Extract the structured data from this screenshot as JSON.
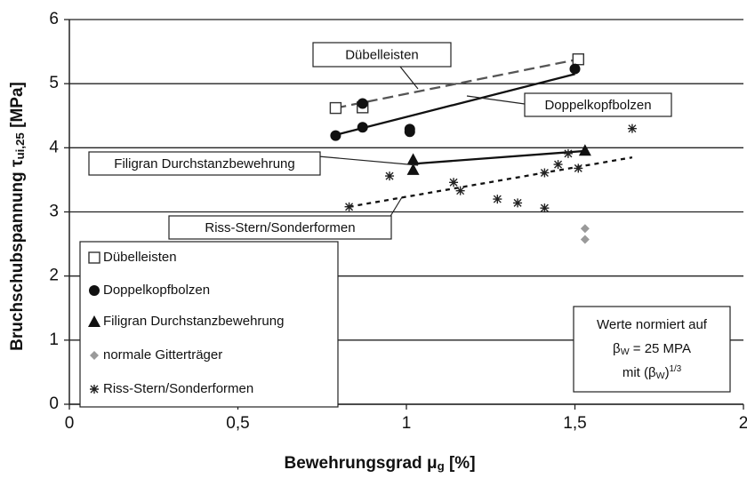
{
  "chart_data": {
    "type": "scatter",
    "x_label": [
      {
        "t": "Bewehrungsgrad μ"
      },
      {
        "sub": "g"
      },
      {
        "t": " [%]"
      }
    ],
    "y_label": [
      {
        "t": "Bruchschubspannung τ"
      },
      {
        "sub": "ui,25"
      },
      {
        "t": " [MPa]"
      }
    ],
    "xlim": [
      0,
      2
    ],
    "ylim": [
      0,
      6
    ],
    "xticks": [
      0,
      {
        "value": 0.5,
        "label": "0,5"
      },
      1,
      {
        "value": 1.5,
        "label": "1,5"
      },
      2
    ],
    "yticks": [
      0,
      1,
      2,
      3,
      4,
      5,
      6
    ],
    "grid": true,
    "series": [
      {
        "name": "Dübelleisten",
        "marker": "square",
        "color": "#333333",
        "x": [
          0.79,
          0.87,
          1.51
        ],
        "values": [
          4.62,
          4.63,
          5.38
        ],
        "trend_x": [
          0.79,
          1.51
        ],
        "trend_y": [
          4.62,
          5.38
        ],
        "trend_style": "dashed"
      },
      {
        "name": "Doppelkopfbolzen",
        "marker": "circle",
        "color": "#111111",
        "x": [
          0.79,
          0.87,
          0.87,
          1.01,
          1.01,
          1.5
        ],
        "values": [
          4.19,
          4.32,
          4.69,
          4.25,
          4.29,
          5.23
        ],
        "trend_x": [
          0.79,
          1.5
        ],
        "trend_y": [
          4.2,
          5.15
        ],
        "trend_style": "solid"
      },
      {
        "name": "Filigran Durchstanzbewehrung",
        "marker": "triangle",
        "color": "#111111",
        "x": [
          1.02,
          1.02,
          1.53
        ],
        "values": [
          3.82,
          3.66,
          3.96
        ],
        "trend_x": [
          1.02,
          1.53
        ],
        "trend_y": [
          3.75,
          3.95
        ],
        "trend_style": "solid"
      },
      {
        "name": "normale Gitterträger",
        "marker": "diamond",
        "color": "#9a9a9a",
        "x": [
          1.53,
          1.53
        ],
        "values": [
          2.74,
          2.57
        ]
      },
      {
        "name": "Riss-Stern/Sonderformen",
        "marker": "asterisk",
        "color": "#222222",
        "x": [
          0.83,
          0.95,
          1.14,
          1.16,
          1.27,
          1.33,
          1.41,
          1.41,
          1.45,
          1.48,
          1.51,
          1.67
        ],
        "values": [
          3.08,
          3.56,
          3.46,
          3.33,
          3.2,
          3.14,
          3.06,
          3.61,
          3.74,
          3.91,
          3.68,
          4.3
        ],
        "trend_x": [
          0.83,
          1.67
        ],
        "trend_y": [
          3.08,
          3.85
        ],
        "trend_style": "dotted"
      }
    ],
    "annotations": [
      "Dübelleisten",
      "Doppelkopfbolzen",
      "Filigran Durchstanzbewehrung",
      "Riss-Stern/Sonderformen"
    ],
    "note": [
      [
        {
          "t": "Werte normiert auf"
        }
      ],
      [
        {
          "t": "β"
        },
        {
          "sub": "W"
        },
        {
          "t": " = 25 MPA"
        }
      ],
      [
        {
          "t": "mit (β"
        },
        {
          "sub": "W"
        },
        {
          "t": ")"
        },
        {
          "sup": "1/3"
        }
      ]
    ]
  }
}
